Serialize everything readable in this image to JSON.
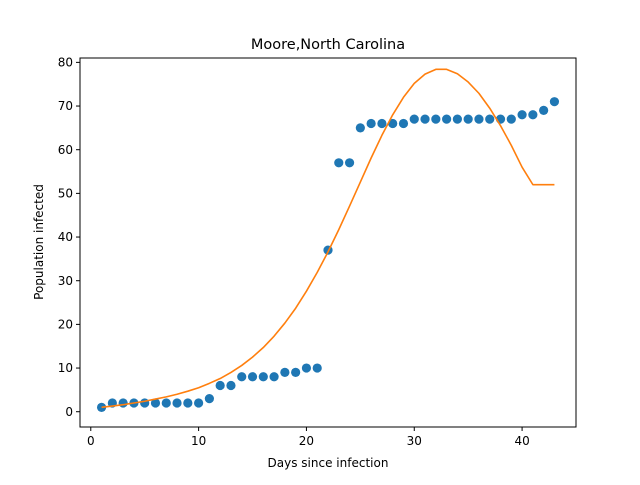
{
  "chart_data": {
    "type": "scatter",
    "title": "Moore,North Carolina",
    "xlabel": "Days since infection",
    "ylabel": "Population infected",
    "xlim": [
      -1,
      45
    ],
    "ylim": [
      -3.5,
      81
    ],
    "xticks": [
      0,
      10,
      20,
      30,
      40
    ],
    "yticks": [
      0,
      10,
      20,
      30,
      40,
      50,
      60,
      70,
      80
    ],
    "grid": false,
    "series": [
      {
        "kind": "scatter",
        "color": "#1f77b4",
        "x": [
          1,
          2,
          3,
          4,
          5,
          6,
          7,
          8,
          9,
          10,
          11,
          12,
          13,
          14,
          15,
          16,
          17,
          18,
          19,
          20,
          21,
          22,
          23,
          24,
          25,
          26,
          27,
          28,
          29,
          30,
          31,
          32,
          33,
          34,
          35,
          36,
          37,
          38,
          39,
          40,
          41,
          42,
          43
        ],
        "y": [
          1,
          2,
          2,
          2,
          2,
          2,
          2,
          2,
          2,
          2,
          3,
          6,
          6,
          8,
          8,
          8,
          8,
          9,
          9,
          10,
          10,
          37,
          57,
          57,
          65,
          66,
          66,
          66,
          66,
          67,
          67,
          67,
          67,
          67,
          67,
          67,
          67,
          67,
          67,
          68,
          68,
          69,
          71
        ]
      },
      {
        "kind": "line",
        "color": "#ff7f0e",
        "x": [
          1,
          2,
          3,
          4,
          5,
          6,
          7,
          8,
          9,
          10,
          11,
          12,
          13,
          14,
          15,
          16,
          17,
          18,
          19,
          20,
          21,
          22,
          23,
          24,
          25,
          26,
          27,
          28,
          29,
          30,
          31,
          32,
          33,
          34,
          35,
          36,
          37,
          38,
          39,
          40,
          41,
          42,
          43
        ],
        "y": [
          1.0,
          1.3,
          1.6,
          2.0,
          2.4,
          2.9,
          3.4,
          4.0,
          4.7,
          5.5,
          6.5,
          7.6,
          9.0,
          10.6,
          12.5,
          14.7,
          17.3,
          20.3,
          23.7,
          27.6,
          31.9,
          36.6,
          41.7,
          47.1,
          52.6,
          58.1,
          63.3,
          68.0,
          72.0,
          75.2,
          77.3,
          78.4,
          78.4,
          77.4,
          75.5,
          72.9,
          69.5,
          65.5,
          61.0,
          56.0,
          52.0,
          52.0,
          52.0
        ]
      }
    ]
  }
}
